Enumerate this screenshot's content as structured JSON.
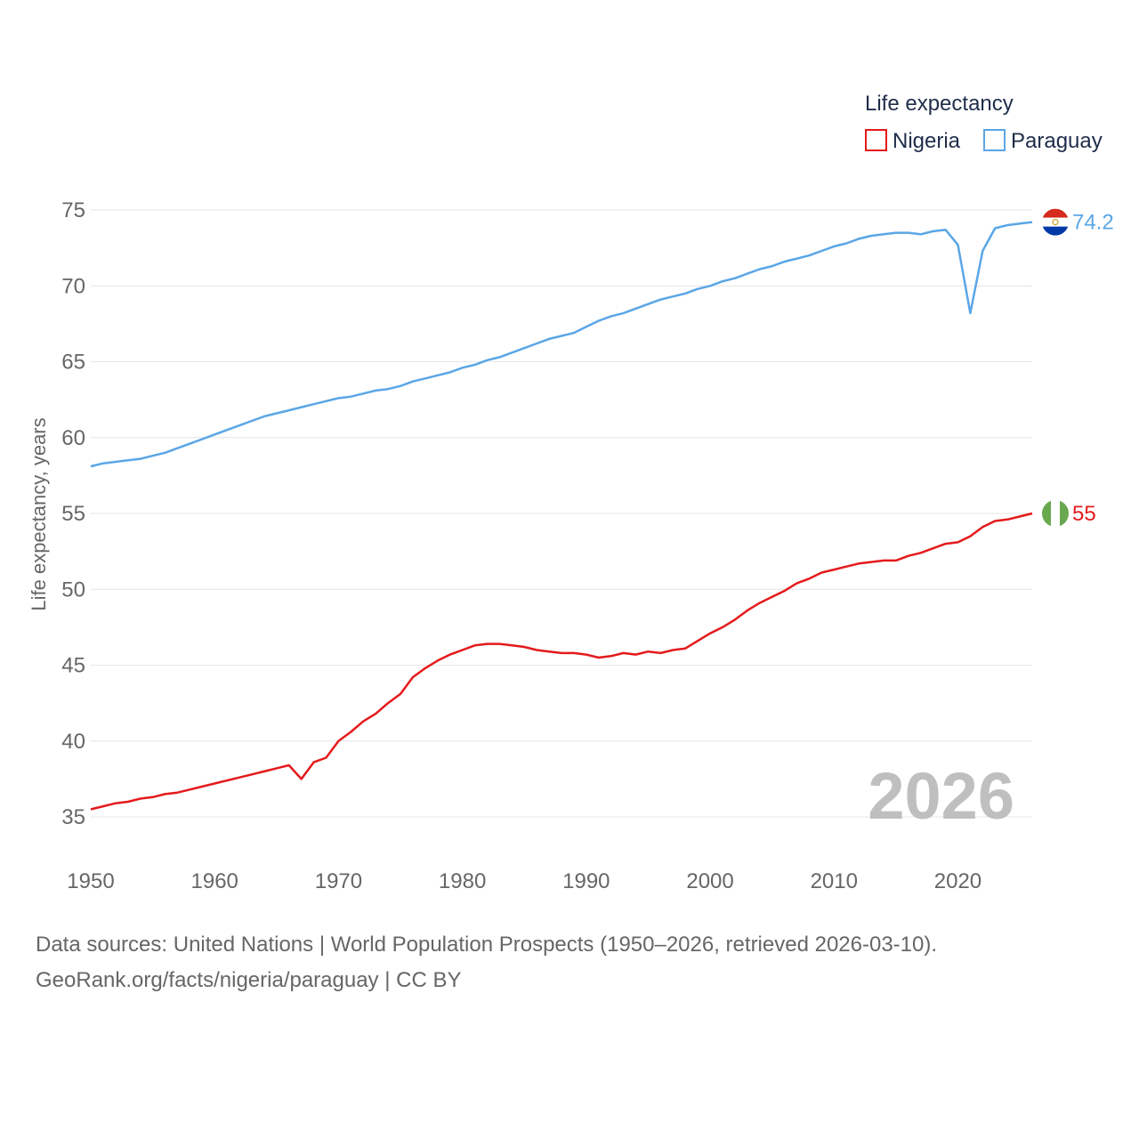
{
  "chart_data": {
    "type": "line",
    "title": "",
    "ylabel": "Life expectancy, years",
    "xlabel": "",
    "xlim": [
      1950,
      2026
    ],
    "ylim": [
      33,
      76
    ],
    "yticks": [
      35,
      40,
      45,
      50,
      55,
      60,
      65,
      70,
      75
    ],
    "xticks": [
      1950,
      1960,
      1970,
      1980,
      1990,
      2000,
      2010,
      2020
    ],
    "grid": true,
    "legend": {
      "title": "Life expectancy",
      "position": "top-right",
      "entries": [
        "Nigeria",
        "Paraguay"
      ]
    },
    "current_year_label": "2026",
    "x": [
      1950,
      1951,
      1952,
      1953,
      1954,
      1955,
      1956,
      1957,
      1958,
      1959,
      1960,
      1961,
      1962,
      1963,
      1964,
      1965,
      1966,
      1967,
      1968,
      1969,
      1970,
      1971,
      1972,
      1973,
      1974,
      1975,
      1976,
      1977,
      1978,
      1979,
      1980,
      1981,
      1982,
      1983,
      1984,
      1985,
      1986,
      1987,
      1988,
      1989,
      1990,
      1991,
      1992,
      1993,
      1994,
      1995,
      1996,
      1997,
      1998,
      1999,
      2000,
      2001,
      2002,
      2003,
      2004,
      2005,
      2006,
      2007,
      2008,
      2009,
      2010,
      2011,
      2012,
      2013,
      2014,
      2015,
      2016,
      2017,
      2018,
      2019,
      2020,
      2021,
      2022,
      2023,
      2024,
      2025,
      2026
    ],
    "series": [
      {
        "name": "Nigeria",
        "color": "#e41a1c",
        "end_label": "55",
        "flag": "nigeria-flag",
        "values": [
          35.5,
          35.7,
          35.9,
          36.0,
          36.2,
          36.3,
          36.5,
          36.6,
          36.8,
          37.0,
          37.2,
          37.4,
          37.6,
          37.8,
          38.0,
          38.2,
          38.4,
          37.5,
          38.6,
          38.9,
          40.0,
          40.6,
          41.3,
          41.8,
          42.5,
          43.1,
          44.2,
          44.8,
          45.3,
          45.7,
          46.0,
          46.3,
          46.4,
          46.4,
          46.3,
          46.2,
          46.0,
          45.9,
          45.8,
          45.8,
          45.7,
          45.5,
          45.6,
          45.8,
          45.7,
          45.9,
          45.8,
          46.0,
          46.1,
          46.6,
          47.1,
          47.5,
          48.0,
          48.6,
          49.1,
          49.5,
          49.9,
          50.4,
          50.7,
          51.1,
          51.3,
          51.5,
          51.7,
          51.8,
          51.9,
          51.9,
          52.2,
          52.4,
          52.7,
          53.0,
          53.1,
          53.5,
          54.1,
          54.5,
          54.6,
          54.8,
          55.0
        ]
      },
      {
        "name": "Paraguay",
        "color": "#5aa6e6",
        "end_label": "74.2",
        "flag": "paraguay-flag",
        "values": [
          58.1,
          58.3,
          58.4,
          58.5,
          58.6,
          58.8,
          59.0,
          59.3,
          59.6,
          59.9,
          60.2,
          60.5,
          60.8,
          61.1,
          61.4,
          61.6,
          61.8,
          62.0,
          62.2,
          62.4,
          62.6,
          62.7,
          62.9,
          63.1,
          63.2,
          63.4,
          63.7,
          63.9,
          64.1,
          64.3,
          64.6,
          64.8,
          65.1,
          65.3,
          65.6,
          65.9,
          66.2,
          66.5,
          66.7,
          66.9,
          67.3,
          67.7,
          68.0,
          68.2,
          68.5,
          68.8,
          69.1,
          69.3,
          69.5,
          69.8,
          70.0,
          70.3,
          70.5,
          70.8,
          71.1,
          71.3,
          71.6,
          71.8,
          72.0,
          72.3,
          72.6,
          72.8,
          73.1,
          73.3,
          73.4,
          73.5,
          73.5,
          73.4,
          73.6,
          73.7,
          72.7,
          68.2,
          72.3,
          73.8,
          74.0,
          74.1,
          74.2
        ]
      }
    ]
  },
  "footer": {
    "source_line": "Data sources: United Nations | World Population Prospects (1950–2026, retrieved 2026-03-10).",
    "credit_line": "GeoRank.org/facts/nigeria/paraguay | CC BY"
  }
}
